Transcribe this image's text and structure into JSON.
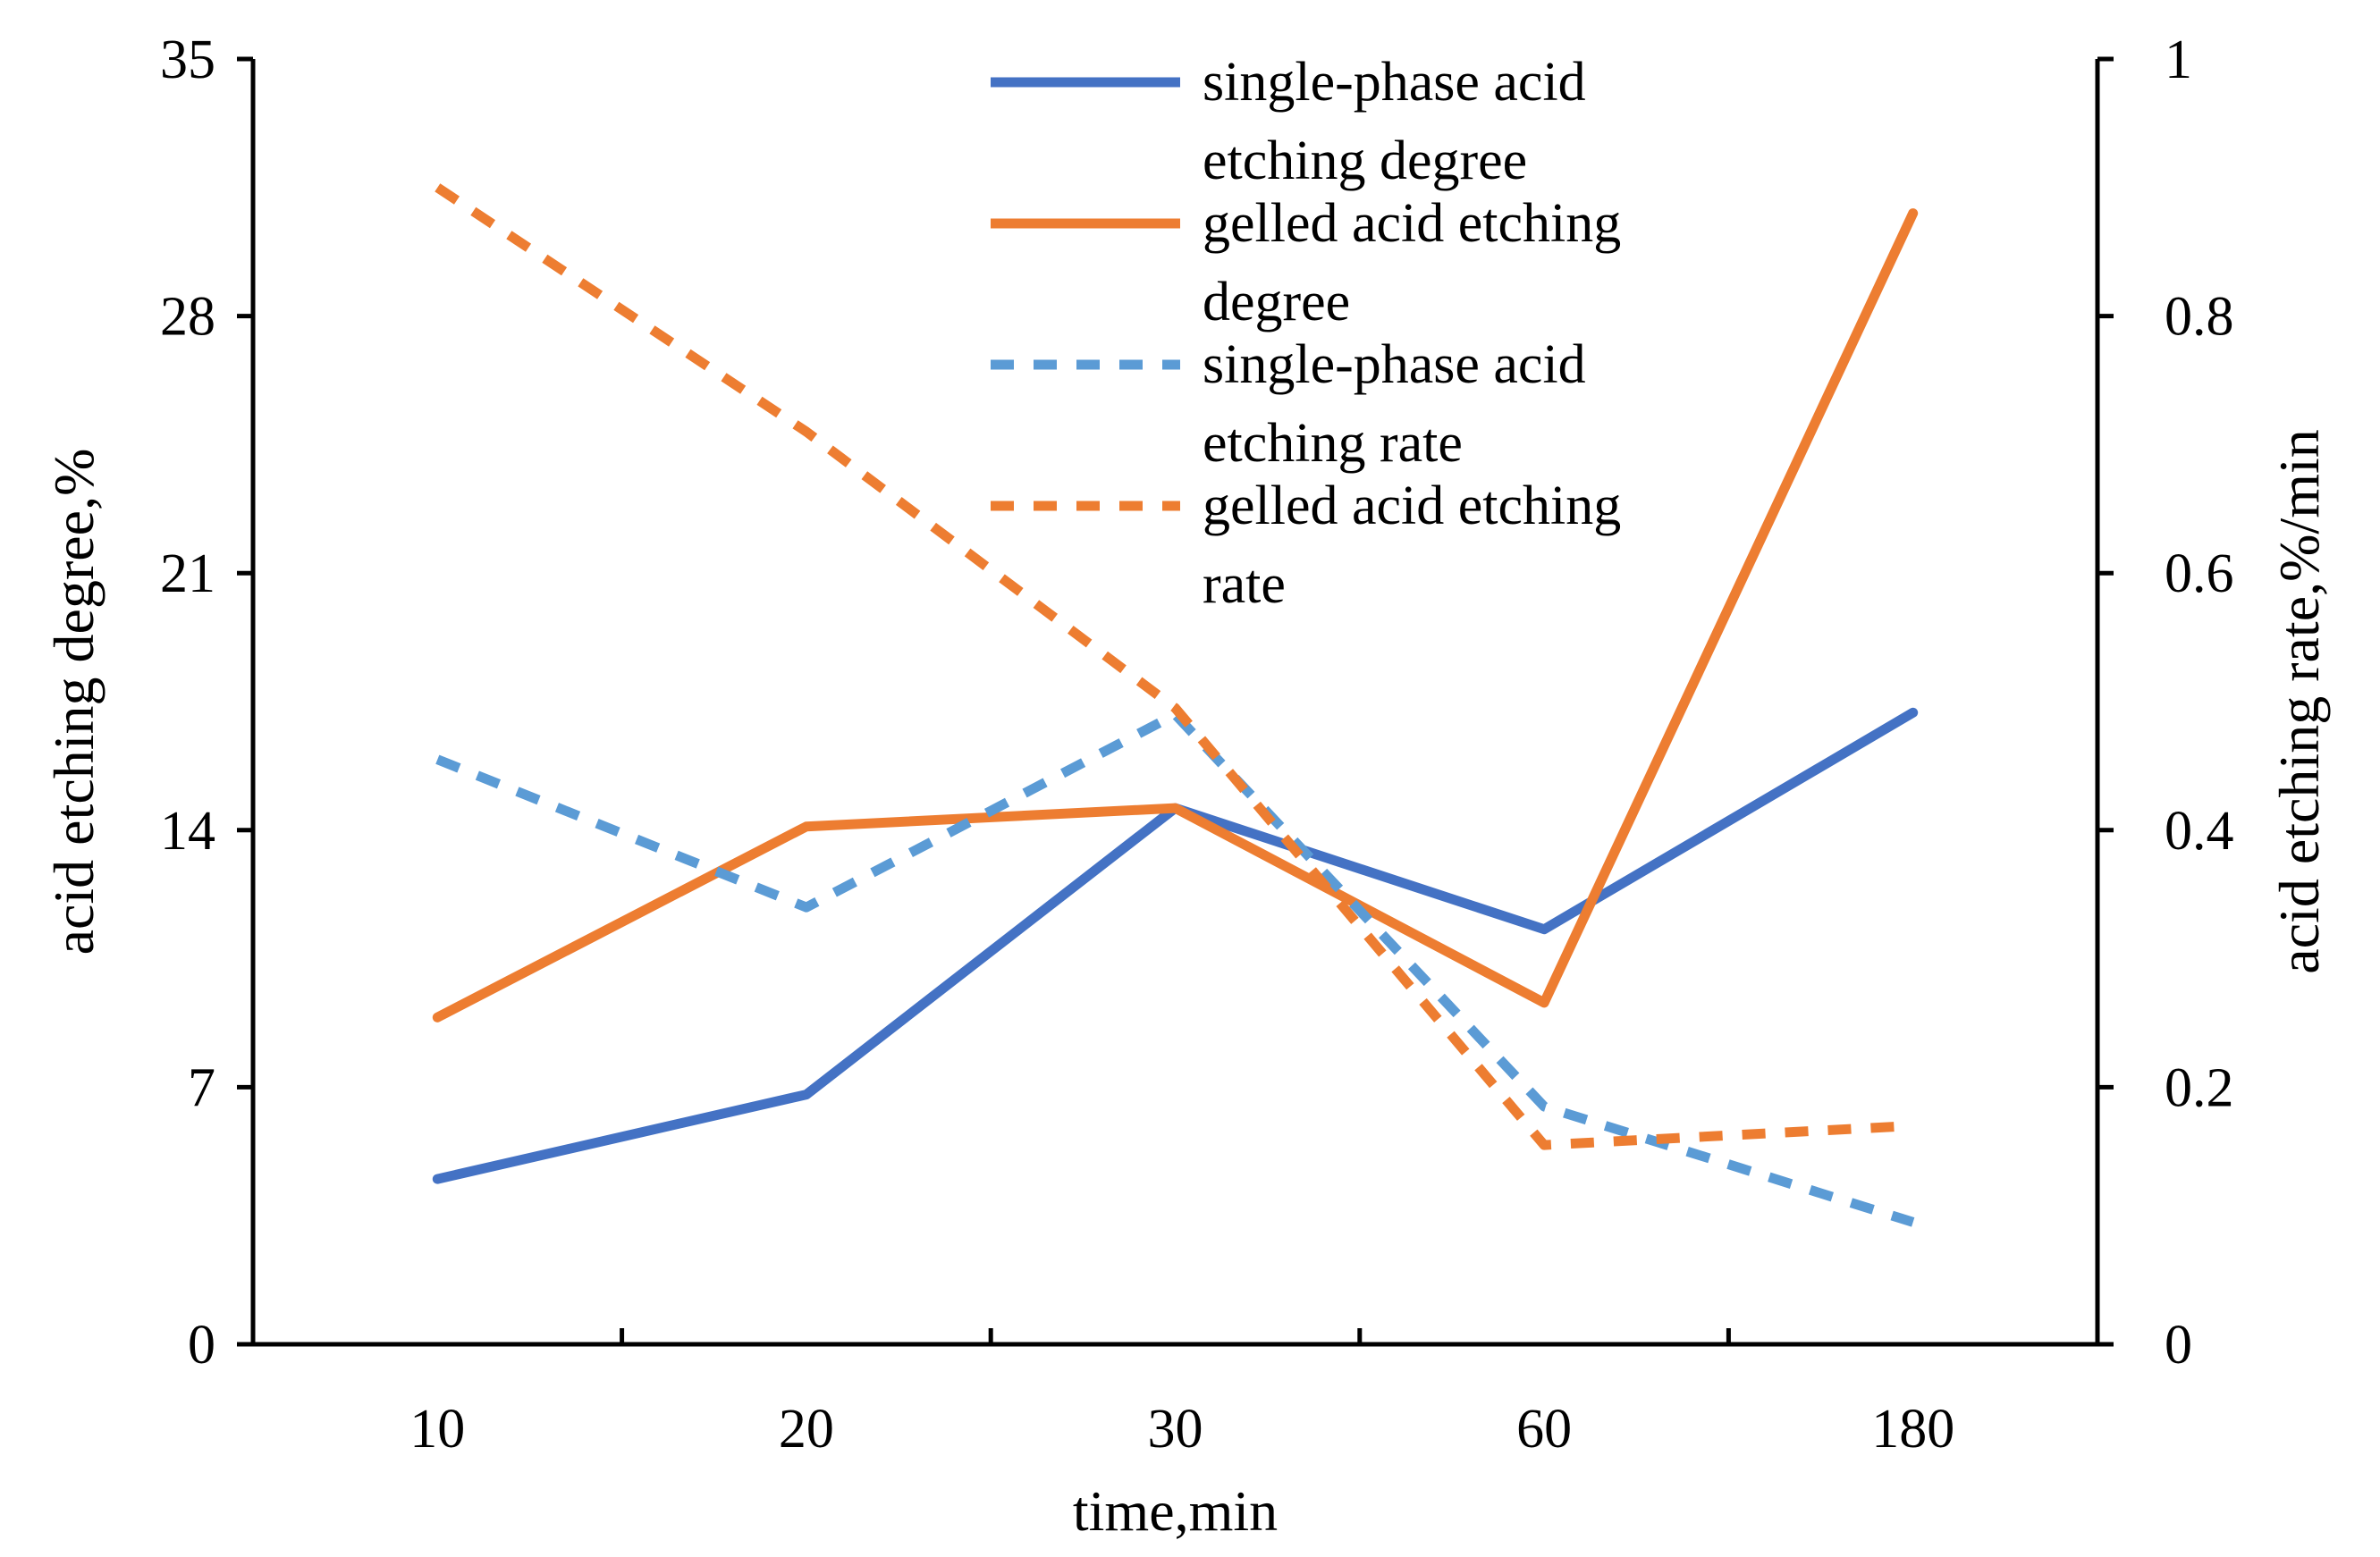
{
  "chart_data": {
    "type": "line",
    "categories": [
      "10",
      "20",
      "30",
      "60",
      "180"
    ],
    "xlabel": "time,min",
    "ylabel": "acid etching degree,%",
    "y2label": "acid etching rate,%/min",
    "ylim": [
      0,
      35
    ],
    "y2lim": [
      0,
      1
    ],
    "yticks": [
      "0",
      "7",
      "14",
      "21",
      "28",
      "35"
    ],
    "y2ticks": [
      "0",
      "0.2",
      "0.4",
      "0.6",
      "0.8",
      "1"
    ],
    "grid": false,
    "legend_position": "top-center",
    "series": [
      {
        "name": "single-phase acid etching degree",
        "legend_lines": [
          "single-phase acid",
          "etching degree"
        ],
        "axis": "left",
        "style": "solid",
        "color": "#4472C4",
        "values": [
          4.5,
          6.8,
          14.6,
          11.3,
          17.2
        ]
      },
      {
        "name": "gelled acid etching degree",
        "legend_lines": [
          "gelled acid etching",
          "degree"
        ],
        "axis": "left",
        "style": "solid",
        "color": "#ED7D31",
        "values": [
          8.9,
          14.1,
          14.6,
          9.3,
          30.8
        ]
      },
      {
        "name": "single-phase acid etching rate",
        "legend_lines": [
          "single-phase acid",
          "etching rate"
        ],
        "axis": "right",
        "style": "dashed",
        "color": "#5B9BD5",
        "values": [
          0.455,
          0.34,
          0.49,
          0.185,
          0.095
        ]
      },
      {
        "name": "gelled acid etching rate",
        "legend_lines": [
          "gelled acid etching",
          "rate"
        ],
        "axis": "right",
        "style": "dashed",
        "color": "#ED7D31",
        "values": [
          0.9,
          0.71,
          0.495,
          0.155,
          0.17
        ]
      }
    ]
  }
}
